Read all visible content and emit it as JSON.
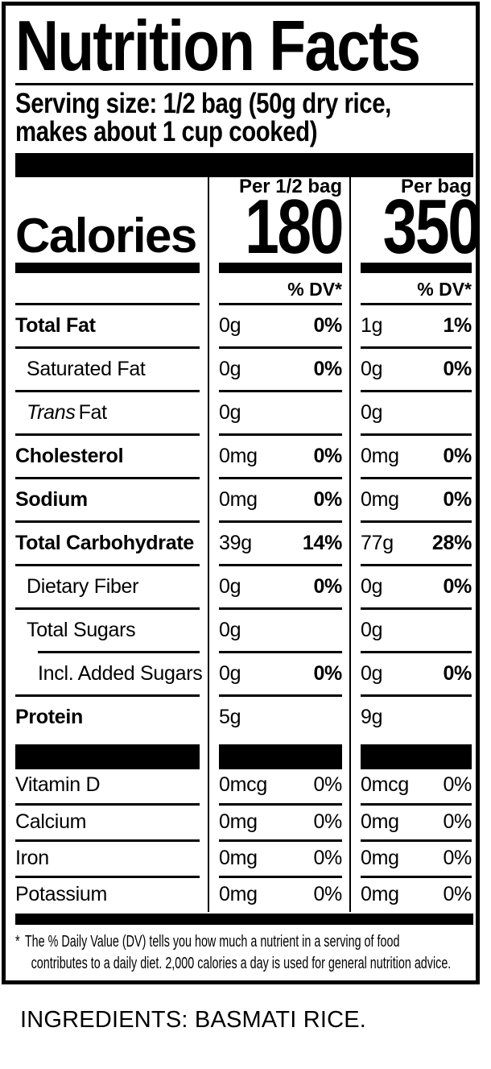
{
  "colors": {
    "ink": "#000000",
    "paper": "#ffffff"
  },
  "label": {
    "title": "Nutrition Facts",
    "serving": {
      "line1": "Serving size: 1/2 bag (50g dry rice,",
      "line2": "makes about 1 cup cooked)"
    },
    "calories": {
      "name": "Calories",
      "per_half_bag_header": "Per 1/2 bag",
      "per_half_bag_value": "180",
      "per_bag_header": "Per bag",
      "per_bag_value": "350"
    },
    "dv_header": "% DV*",
    "nutrients": [
      {
        "name": "Total Fat",
        "half_amount": "0g",
        "half_dv": "0%",
        "bag_amount": "1g",
        "bag_dv": "1%"
      },
      {
        "name": "Saturated Fat",
        "half_amount": "0g",
        "half_dv": "0%",
        "bag_amount": "0g",
        "bag_dv": "0%"
      },
      {
        "name_italic": "Trans",
        "name_rest": "Fat",
        "half_amount": "0g",
        "half_dv": "",
        "bag_amount": "0g",
        "bag_dv": ""
      },
      {
        "name": "Cholesterol",
        "half_amount": "0mg",
        "half_dv": "0%",
        "bag_amount": "0mg",
        "bag_dv": "0%"
      },
      {
        "name": "Sodium",
        "half_amount": "0mg",
        "half_dv": "0%",
        "bag_amount": "0mg",
        "bag_dv": "0%"
      },
      {
        "name": "Total Carbohydrate",
        "half_amount": "39g",
        "half_dv": "14%",
        "bag_amount": "77g",
        "bag_dv": "28%"
      },
      {
        "name": "Dietary Fiber",
        "half_amount": "0g",
        "half_dv": "0%",
        "bag_amount": "0g",
        "bag_dv": "0%"
      },
      {
        "name": "Total Sugars",
        "half_amount": "0g",
        "half_dv": "",
        "bag_amount": "0g",
        "bag_dv": ""
      },
      {
        "name": "Incl. Added Sugars",
        "half_amount": "0g",
        "half_dv": "0%",
        "bag_amount": "0g",
        "bag_dv": "0%"
      },
      {
        "name": "Protein",
        "half_amount": "5g",
        "half_dv": "",
        "bag_amount": "9g",
        "bag_dv": ""
      }
    ],
    "vitamins": [
      {
        "name": "Vitamin D",
        "half_amount": "0mcg",
        "half_dv": "0%",
        "bag_amount": "0mcg",
        "bag_dv": "0%"
      },
      {
        "name": "Calcium",
        "half_amount": "0mg",
        "half_dv": "0%",
        "bag_amount": "0mg",
        "bag_dv": "0%"
      },
      {
        "name": "Iron",
        "half_amount": "0mg",
        "half_dv": "0%",
        "bag_amount": "0mg",
        "bag_dv": "0%"
      },
      {
        "name": "Potassium",
        "half_amount": "0mg",
        "half_dv": "0%",
        "bag_amount": "0mg",
        "bag_dv": "0%"
      }
    ],
    "footnote": {
      "marker": "*",
      "line1": "The % Daily Value (DV) tells you how much a nutrient in a serving of food",
      "line2": "contributes to a daily diet. 2,000 calories a day is used for general nutrition advice."
    }
  },
  "ingredients": "INGREDIENTS: BASMATI RICE."
}
